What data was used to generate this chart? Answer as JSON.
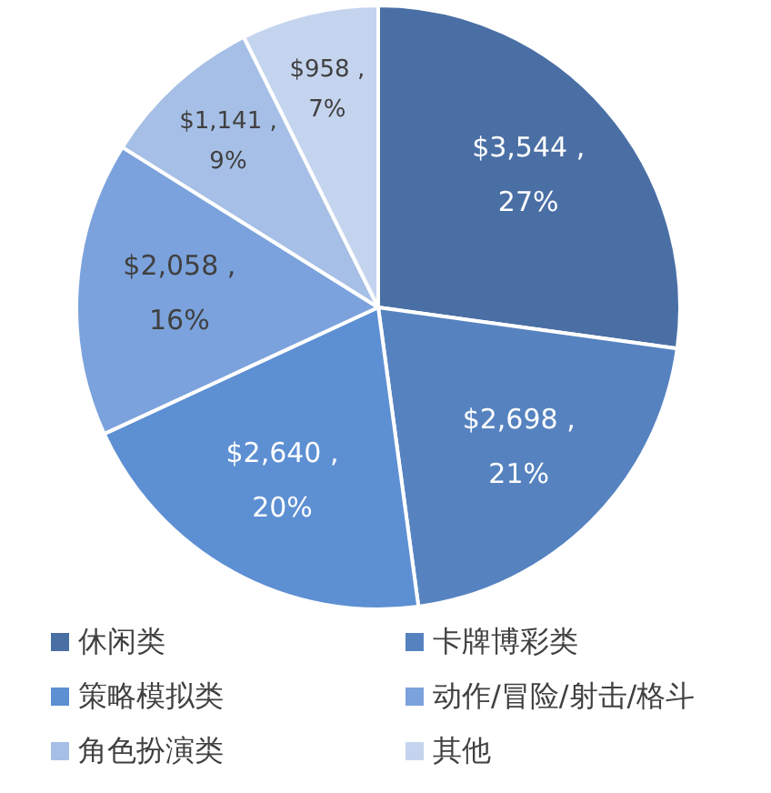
{
  "chart_data": {
    "type": "pie",
    "categories": [
      "休闲类",
      "卡牌博彩类",
      "策略模拟类",
      "动作/冒险/射击/格斗",
      "角色扮演类",
      "其他"
    ],
    "values": [
      3544,
      2698,
      2640,
      2058,
      1141,
      958
    ],
    "colors": [
      "#4a6fa5",
      "#5683c0",
      "#5d8fd3",
      "#7ba2dc",
      "#a6bfe6",
      "#c5d4ee"
    ],
    "value_labels": [
      "$3,544 , 27%",
      "$2,698 , 21%",
      "$2,640 , 20%",
      "$2,058 , 16%",
      "$1,141 , 9%",
      "$958 , 7%"
    ],
    "legend": "bottom"
  }
}
